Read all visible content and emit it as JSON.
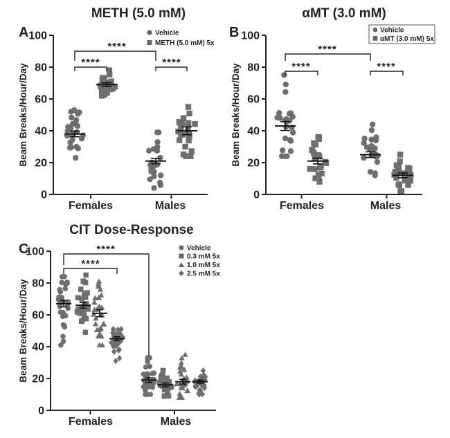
{
  "chart_data": [
    {
      "panel": "A",
      "title": "METH (5.0 mM)",
      "type": "scatter",
      "ylabel": "Beam Breaks/Hour/Day",
      "ylim": [
        0,
        100
      ],
      "yticks": [
        0,
        20,
        40,
        60,
        80,
        100
      ],
      "categories": [
        "Females",
        "Males"
      ],
      "series": [
        {
          "name": "Vehicle",
          "marker": "circle",
          "means": [
            38,
            21
          ],
          "sem": [
            1.8,
            1.7
          ],
          "range": [
            [
              23,
              53
            ],
            [
              4,
              39
            ]
          ]
        },
        {
          "name": "METH (5.0 mM) 5x",
          "marker": "square",
          "means": [
            69,
            40
          ],
          "sem": [
            1.2,
            2.5
          ],
          "range": [
            [
              62,
              78
            ],
            [
              24,
              55
            ]
          ]
        }
      ],
      "significance": [
        "****",
        "****",
        "****"
      ],
      "legend": "top-right"
    },
    {
      "panel": "B",
      "title": "αMT (3.0 mM)",
      "type": "scatter",
      "ylabel": "Beam Breaks/Hour/Day",
      "ylim": [
        0,
        100
      ],
      "yticks": [
        0,
        20,
        40,
        60,
        80,
        100
      ],
      "categories": [
        "Females",
        "Males"
      ],
      "series": [
        {
          "name": "Vehicle",
          "marker": "circle",
          "means": [
            43,
            25
          ],
          "sem": [
            2.8,
            1.8
          ],
          "range": [
            [
              24,
              75
            ],
            [
              12,
              44
            ]
          ]
        },
        {
          "name": "αMT (3.0 mM) 5x",
          "marker": "square",
          "means": [
            21,
            12
          ],
          "sem": [
            1.8,
            1.5
          ],
          "range": [
            [
              8,
              36
            ],
            [
              2,
              25
            ]
          ]
        }
      ],
      "significance": [
        "****",
        "****",
        "****"
      ],
      "legend": "top-right"
    },
    {
      "panel": "C",
      "title": "CIT Dose-Response",
      "type": "scatter",
      "ylabel": "Beam Breaks/Hour/Day",
      "ylim": [
        0,
        100
      ],
      "yticks": [
        0,
        20,
        40,
        60,
        80,
        100
      ],
      "categories": [
        "Females",
        "Males"
      ],
      "series": [
        {
          "name": "Vehicle",
          "marker": "circle",
          "means": [
            67,
            19
          ],
          "sem": [
            2.0,
            1.4
          ],
          "range": [
            [
              41,
              84
            ],
            [
              10,
              33
            ]
          ]
        },
        {
          "name": "0.3 mM 5x",
          "marker": "square",
          "means": [
            66,
            16
          ],
          "sem": [
            1.8,
            1.2
          ],
          "range": [
            [
              49,
              85
            ],
            [
              9,
              25
            ]
          ]
        },
        {
          "name": "1.0 mM 5x",
          "marker": "triangle",
          "means": [
            61,
            18
          ],
          "sem": [
            2.2,
            1.5
          ],
          "range": [
            [
              41,
              81
            ],
            [
              8,
              35
            ]
          ]
        },
        {
          "name": "2.5 mM 5x",
          "marker": "diamond",
          "means": [
            45,
            18
          ],
          "sem": [
            1.2,
            1.0
          ],
          "range": [
            [
              31,
              51
            ],
            [
              10,
              25
            ]
          ]
        }
      ],
      "significance": [
        "****",
        "****"
      ],
      "legend": "top-right"
    }
  ]
}
